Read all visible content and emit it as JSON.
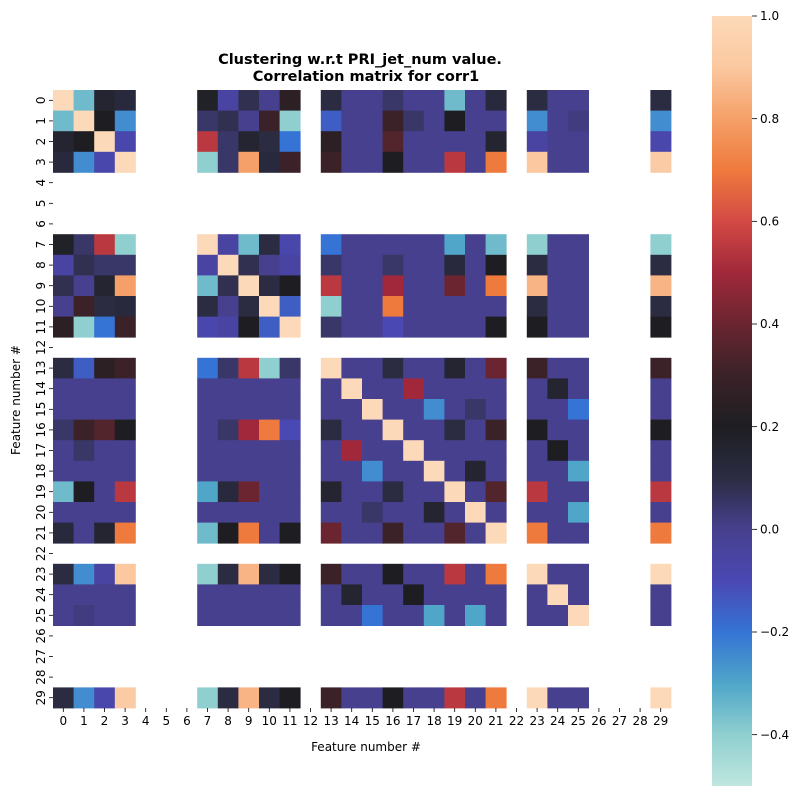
{
  "chart_data": {
    "type": "heatmap",
    "title": "Clustering w.r.t PRI_jet_num value.",
    "subtitle": "Correlation matrix for corr1",
    "xlabel": "Feature number #",
    "ylabel": "Feature number #",
    "labels": [
      "0",
      "1",
      "2",
      "3",
      "4",
      "5",
      "6",
      "7",
      "8",
      "9",
      "10",
      "11",
      "12",
      "13",
      "14",
      "15",
      "16",
      "17",
      "18",
      "19",
      "20",
      "21",
      "22",
      "23",
      "24",
      "25",
      "26",
      "27",
      "28",
      "29"
    ],
    "colorbar": {
      "min": -0.5,
      "max": 1.0,
      "ticks": [
        -0.4,
        -0.2,
        0.0,
        0.2,
        0.4,
        0.6,
        0.8,
        1.0
      ],
      "tick_labels": [
        "−0.4",
        "−0.2",
        "0.0",
        "0.2",
        "0.4",
        "0.6",
        "0.8",
        "1.0"
      ],
      "colors": [
        "#bfe6df",
        "#8fcfcf",
        "#4fa6c9",
        "#3573d4",
        "#4a48b3",
        "#47408e",
        "#2b2c42",
        "#1e1e22",
        "#3a2228",
        "#6a2530",
        "#a0283a",
        "#d34a45",
        "#ef7a3d",
        "#f5a068",
        "#fbc8a0",
        "#fcd9b8"
      ]
    },
    "nan_indices": [
      4,
      5,
      6,
      12,
      22,
      26,
      27,
      28
    ],
    "values": [
      [
        1.0,
        -0.35,
        0.15,
        0.12,
        null,
        null,
        null,
        0.18,
        -0.05,
        0.08,
        0.0,
        0.25,
        null,
        0.1,
        0.0,
        0.0,
        0.05,
        0.0,
        0.0,
        -0.35,
        0.0,
        0.12,
        null,
        0.1,
        0.0,
        0.0,
        null,
        null,
        null,
        0.1
      ],
      [
        -0.35,
        1.0,
        0.2,
        -0.25,
        null,
        null,
        null,
        0.05,
        0.08,
        0.0,
        0.3,
        -0.4,
        null,
        -0.15,
        0.0,
        0.0,
        0.3,
        0.05,
        0.0,
        0.2,
        0.0,
        0.0,
        null,
        -0.25,
        0.0,
        0.02,
        null,
        null,
        null,
        -0.25
      ],
      [
        0.15,
        0.2,
        1.0,
        -0.08,
        null,
        null,
        null,
        0.55,
        0.05,
        0.15,
        0.1,
        -0.2,
        null,
        0.25,
        0.0,
        0.0,
        0.35,
        0.0,
        0.0,
        0.0,
        0.0,
        0.15,
        null,
        -0.05,
        0.0,
        0.0,
        null,
        null,
        null,
        -0.08
      ],
      [
        0.12,
        -0.25,
        -0.08,
        1.0,
        null,
        null,
        null,
        -0.4,
        0.05,
        0.8,
        0.12,
        0.3,
        null,
        0.3,
        0.0,
        0.0,
        0.2,
        0.0,
        0.0,
        0.55,
        0.0,
        0.7,
        null,
        0.9,
        0.0,
        0.0,
        null,
        null,
        null,
        0.92
      ],
      [
        null,
        null,
        null,
        null,
        null,
        null,
        null,
        null,
        null,
        null,
        null,
        null,
        null,
        null,
        null,
        null,
        null,
        null,
        null,
        null,
        null,
        null,
        null,
        null,
        null,
        null,
        null,
        null,
        null,
        null
      ],
      [
        null,
        null,
        null,
        null,
        null,
        null,
        null,
        null,
        null,
        null,
        null,
        null,
        null,
        null,
        null,
        null,
        null,
        null,
        null,
        null,
        null,
        null,
        null,
        null,
        null,
        null,
        null,
        null,
        null,
        null
      ],
      [
        null,
        null,
        null,
        null,
        null,
        null,
        null,
        null,
        null,
        null,
        null,
        null,
        null,
        null,
        null,
        null,
        null,
        null,
        null,
        null,
        null,
        null,
        null,
        null,
        null,
        null,
        null,
        null,
        null,
        null
      ],
      [
        0.18,
        0.05,
        0.55,
        -0.4,
        null,
        null,
        null,
        1.0,
        -0.05,
        -0.35,
        0.1,
        -0.08,
        null,
        -0.2,
        0.0,
        0.0,
        0.0,
        0.0,
        0.0,
        -0.3,
        0.0,
        -0.35,
        null,
        -0.4,
        0.0,
        0.0,
        null,
        null,
        null,
        -0.4
      ],
      [
        -0.05,
        0.08,
        0.05,
        0.05,
        null,
        null,
        null,
        -0.05,
        1.0,
        0.08,
        0.0,
        -0.05,
        null,
        0.05,
        0.0,
        0.0,
        0.05,
        0.0,
        0.0,
        0.12,
        0.0,
        0.2,
        null,
        0.1,
        0.0,
        0.0,
        null,
        null,
        null,
        0.1
      ],
      [
        0.08,
        0.0,
        0.15,
        0.8,
        null,
        null,
        null,
        -0.35,
        0.08,
        1.0,
        0.1,
        0.2,
        null,
        0.55,
        0.0,
        0.0,
        0.5,
        0.0,
        0.0,
        0.4,
        0.0,
        0.7,
        null,
        0.85,
        0.0,
        0.0,
        null,
        null,
        null,
        0.85
      ],
      [
        0.0,
        0.3,
        0.1,
        0.12,
        null,
        null,
        null,
        0.1,
        0.0,
        0.1,
        1.0,
        -0.15,
        null,
        -0.4,
        0.0,
        0.0,
        0.7,
        0.0,
        0.0,
        0.0,
        0.0,
        0.0,
        null,
        0.1,
        0.0,
        0.0,
        null,
        null,
        null,
        0.1
      ],
      [
        0.25,
        -0.4,
        -0.2,
        0.3,
        null,
        null,
        null,
        -0.08,
        -0.05,
        0.2,
        -0.15,
        1.0,
        null,
        0.05,
        0.0,
        0.0,
        -0.1,
        0.0,
        0.0,
        0.0,
        0.0,
        0.2,
        null,
        0.2,
        0.0,
        0.0,
        null,
        null,
        null,
        0.2
      ],
      [
        null,
        null,
        null,
        null,
        null,
        null,
        null,
        null,
        null,
        null,
        null,
        null,
        null,
        null,
        null,
        null,
        null,
        null,
        null,
        null,
        null,
        null,
        null,
        null,
        null,
        null,
        null,
        null,
        null,
        null
      ],
      [
        0.1,
        -0.15,
        0.25,
        0.3,
        null,
        null,
        null,
        -0.2,
        0.05,
        0.55,
        -0.4,
        0.05,
        null,
        1.0,
        0.0,
        0.0,
        0.1,
        0.0,
        0.0,
        0.15,
        0.0,
        0.4,
        null,
        0.3,
        0.0,
        0.0,
        null,
        null,
        null,
        0.3
      ],
      [
        0.0,
        0.0,
        0.0,
        0.0,
        null,
        null,
        null,
        0.0,
        0.0,
        0.0,
        0.0,
        0.0,
        null,
        0.0,
        1.0,
        0.0,
        0.0,
        0.5,
        0.0,
        0.0,
        0.0,
        0.0,
        null,
        0.0,
        0.15,
        0.0,
        null,
        null,
        null,
        0.0
      ],
      [
        0.0,
        0.0,
        0.0,
        0.0,
        null,
        null,
        null,
        0.0,
        0.0,
        0.0,
        0.0,
        0.0,
        null,
        0.0,
        0.0,
        1.0,
        0.0,
        0.0,
        -0.25,
        0.0,
        0.05,
        0.0,
        null,
        0.0,
        0.0,
        -0.2,
        null,
        null,
        null,
        0.0
      ],
      [
        0.05,
        0.3,
        0.35,
        0.2,
        null,
        null,
        null,
        0.0,
        0.05,
        0.5,
        0.7,
        -0.1,
        null,
        0.1,
        0.0,
        0.0,
        1.0,
        0.0,
        0.0,
        0.1,
        0.0,
        0.3,
        null,
        0.2,
        0.0,
        0.0,
        null,
        null,
        null,
        0.2
      ],
      [
        0.0,
        0.05,
        0.0,
        0.0,
        null,
        null,
        null,
        0.0,
        0.0,
        0.0,
        0.0,
        0.0,
        null,
        0.0,
        0.5,
        0.0,
        0.0,
        1.0,
        0.0,
        0.0,
        0.0,
        0.0,
        null,
        0.0,
        0.2,
        0.0,
        null,
        null,
        null,
        0.0
      ],
      [
        0.0,
        0.0,
        0.0,
        0.0,
        null,
        null,
        null,
        0.0,
        0.0,
        0.0,
        0.0,
        0.0,
        null,
        0.0,
        0.0,
        -0.25,
        0.0,
        0.0,
        1.0,
        0.0,
        0.15,
        0.0,
        null,
        0.0,
        0.0,
        -0.3,
        null,
        null,
        null,
        0.0
      ],
      [
        -0.35,
        0.2,
        0.0,
        0.55,
        null,
        null,
        null,
        -0.3,
        0.12,
        0.4,
        0.0,
        0.0,
        null,
        0.15,
        0.0,
        0.0,
        0.1,
        0.0,
        0.0,
        1.0,
        0.0,
        0.35,
        null,
        0.55,
        0.0,
        0.0,
        null,
        null,
        null,
        0.55
      ],
      [
        0.0,
        0.0,
        0.0,
        0.0,
        null,
        null,
        null,
        0.0,
        0.0,
        0.0,
        0.0,
        0.0,
        null,
        0.0,
        0.0,
        0.05,
        0.0,
        0.0,
        0.15,
        0.0,
        1.0,
        0.0,
        null,
        0.0,
        0.0,
        -0.3,
        null,
        null,
        null,
        0.0
      ],
      [
        0.12,
        0.0,
        0.15,
        0.7,
        null,
        null,
        null,
        -0.35,
        0.2,
        0.7,
        0.0,
        0.2,
        null,
        0.4,
        0.0,
        0.0,
        0.3,
        0.0,
        0.0,
        0.35,
        0.0,
        1.0,
        null,
        0.7,
        0.0,
        0.0,
        null,
        null,
        null,
        0.7
      ],
      [
        null,
        null,
        null,
        null,
        null,
        null,
        null,
        null,
        null,
        null,
        null,
        null,
        null,
        null,
        null,
        null,
        null,
        null,
        null,
        null,
        null,
        null,
        null,
        null,
        null,
        null,
        null,
        null,
        null,
        null
      ],
      [
        0.1,
        -0.25,
        -0.05,
        0.9,
        null,
        null,
        null,
        -0.4,
        0.1,
        0.85,
        0.1,
        0.2,
        null,
        0.3,
        0.0,
        0.0,
        0.2,
        0.0,
        0.0,
        0.55,
        0.0,
        0.7,
        null,
        1.0,
        0.0,
        0.0,
        null,
        null,
        null,
        1.0
      ],
      [
        0.0,
        0.0,
        0.0,
        0.0,
        null,
        null,
        null,
        0.0,
        0.0,
        0.0,
        0.0,
        0.0,
        null,
        0.0,
        0.15,
        0.0,
        0.0,
        0.2,
        0.0,
        0.0,
        0.0,
        0.0,
        null,
        0.0,
        1.0,
        0.0,
        null,
        null,
        null,
        0.0
      ],
      [
        0.0,
        0.02,
        0.0,
        0.0,
        null,
        null,
        null,
        0.0,
        0.0,
        0.0,
        0.0,
        0.0,
        null,
        0.0,
        0.0,
        -0.2,
        0.0,
        0.0,
        -0.3,
        0.0,
        -0.3,
        0.0,
        null,
        0.0,
        0.0,
        1.0,
        null,
        null,
        null,
        0.0
      ],
      [
        null,
        null,
        null,
        null,
        null,
        null,
        null,
        null,
        null,
        null,
        null,
        null,
        null,
        null,
        null,
        null,
        null,
        null,
        null,
        null,
        null,
        null,
        null,
        null,
        null,
        null,
        null,
        null,
        null,
        null
      ],
      [
        null,
        null,
        null,
        null,
        null,
        null,
        null,
        null,
        null,
        null,
        null,
        null,
        null,
        null,
        null,
        null,
        null,
        null,
        null,
        null,
        null,
        null,
        null,
        null,
        null,
        null,
        null,
        null,
        null,
        null
      ],
      [
        null,
        null,
        null,
        null,
        null,
        null,
        null,
        null,
        null,
        null,
        null,
        null,
        null,
        null,
        null,
        null,
        null,
        null,
        null,
        null,
        null,
        null,
        null,
        null,
        null,
        null,
        null,
        null,
        null,
        null
      ],
      [
        0.1,
        -0.25,
        -0.08,
        0.92,
        null,
        null,
        null,
        -0.4,
        0.1,
        0.85,
        0.1,
        0.2,
        null,
        0.3,
        0.0,
        0.0,
        0.2,
        0.0,
        0.0,
        0.55,
        0.0,
        0.7,
        null,
        1.0,
        0.0,
        0.0,
        null,
        null,
        null,
        1.0
      ]
    ]
  }
}
